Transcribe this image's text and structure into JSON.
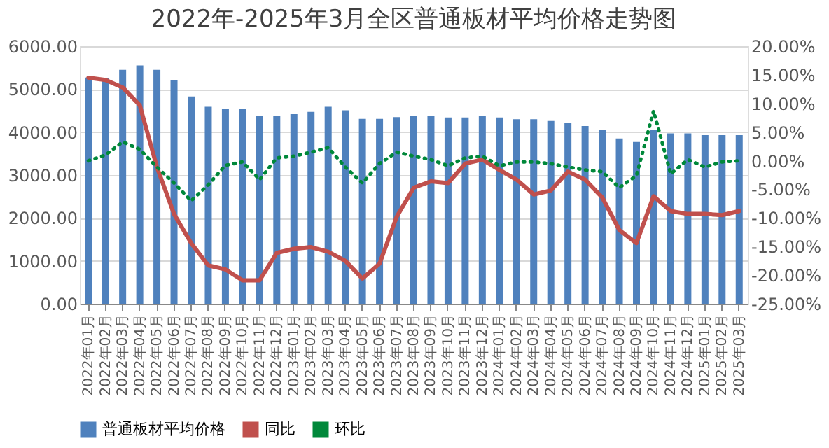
{
  "chart_data": {
    "type": "bar",
    "title": "2022年-2025年3月全区普通板材平均价格走势图",
    "categories": [
      "2022年01月",
      "2022年02月",
      "2022年03月",
      "2022年04月",
      "2022年05月",
      "2022年06月",
      "2022年07月",
      "2022年08月",
      "2022年09月",
      "2022年10月",
      "2022年11月",
      "2022年12月",
      "2023年01月",
      "2023年02月",
      "2023年03月",
      "2023年04月",
      "2023年05月",
      "2023年06月",
      "2023年07月",
      "2023年08月",
      "2023年09月",
      "2023年10月",
      "2023年11月",
      "2023年12月",
      "2024年01月",
      "2024年02月",
      "2024年03月",
      "2024年04月",
      "2024年05月",
      "2024年06月",
      "2024年07月",
      "2024年08月",
      "2024年09月",
      "2024年10月",
      "2024年11月",
      "2024年12月",
      "2025年01月",
      "2025年02月",
      "2025年03月"
    ],
    "series": [
      {
        "name": "普通板材平均价格",
        "color": "#4f81bd",
        "values": [
          5270,
          5250,
          5450,
          5550,
          5450,
          5200,
          4830,
          4590,
          4550,
          4550,
          4380,
          4380,
          4420,
          4470,
          4590,
          4510,
          4310,
          4310,
          4350,
          4380,
          4380,
          4340,
          4340,
          4380,
          4340,
          4300,
          4300,
          4260,
          4220,
          4140,
          4050,
          3850,
          3770,
          4050,
          3970,
          3970,
          3930,
          3930,
          3930
        ]
      },
      {
        "name": "同比",
        "type": "line",
        "axis": "y2",
        "color": "#c0504d",
        "line_style": "solid",
        "values": [
          14.5,
          14.1,
          12.8,
          9.7,
          -1.1,
          -9.3,
          -14.4,
          -18.3,
          -19.0,
          -20.9,
          -20.9,
          -16.1,
          -15.4,
          -15.1,
          -15.9,
          -17.5,
          -20.6,
          -18.0,
          -9.8,
          -4.7,
          -3.6,
          -3.9,
          -0.5,
          0.2,
          -1.6,
          -3.3,
          -5.9,
          -5.2,
          -1.9,
          -3.3,
          -6.4,
          -12.1,
          -14.4,
          -6.2,
          -8.8,
          -9.3,
          -9.3,
          -9.5,
          -8.8
        ]
      },
      {
        "name": "环比",
        "type": "line",
        "axis": "y2",
        "color": "#00883a",
        "line_style": "dotted",
        "values": [
          0.0,
          1.0,
          3.3,
          2.0,
          -1.1,
          -3.9,
          -7.0,
          -4.2,
          -0.8,
          -0.2,
          -3.3,
          0.5,
          0.8,
          1.5,
          2.3,
          -1.1,
          -3.9,
          -0.5,
          1.5,
          0.8,
          0.2,
          -0.9,
          0.5,
          0.8,
          -0.9,
          -0.2,
          -0.2,
          -0.5,
          -1.1,
          -1.6,
          -1.9,
          -4.7,
          -2.6,
          8.7,
          -2.3,
          0.2,
          -1.1,
          -0.2,
          0.0
        ]
      }
    ],
    "ylim": [
      0,
      6000
    ],
    "yticks": [
      {
        "value": 0,
        "label": "0.00"
      },
      {
        "value": 1000,
        "label": "1000.00"
      },
      {
        "value": 2000,
        "label": "2000.00"
      },
      {
        "value": 3000,
        "label": "3000.00"
      },
      {
        "value": 4000,
        "label": "4000.00"
      },
      {
        "value": 5000,
        "label": "5000.00"
      },
      {
        "value": 6000,
        "label": "6000.00"
      }
    ],
    "y2lim": [
      -25,
      20
    ],
    "y2ticks": [
      {
        "value": -25,
        "label": "-25.00%"
      },
      {
        "value": -20,
        "label": "-20.00%"
      },
      {
        "value": -15,
        "label": "-15.00%"
      },
      {
        "value": -10,
        "label": "-10.00%"
      },
      {
        "value": -5,
        "label": "-5.00%"
      },
      {
        "value": 0,
        "label": "0.00%"
      },
      {
        "value": 5,
        "label": "5.00%"
      },
      {
        "value": 10,
        "label": "10.00%"
      },
      {
        "value": 15,
        "label": "15.00%"
      },
      {
        "value": 20,
        "label": "20.00%"
      }
    ],
    "grid": "y",
    "legend": "bottom"
  }
}
